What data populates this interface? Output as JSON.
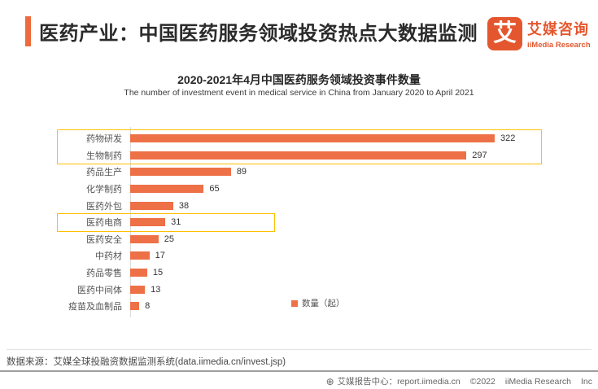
{
  "header": {
    "title": "医药产业：中国医药服务领域投资热点大数据监测",
    "logo": {
      "glyph": "艾",
      "name_cn": "艾媒咨询",
      "name_en": "iiMedia Research"
    }
  },
  "chart_data": {
    "type": "bar",
    "orientation": "horizontal",
    "title": "2020-2021年4月中国医药服务领域投资事件数量",
    "subtitle": "The number of investment event in medical service in China from January 2020 to April 2021",
    "categories": [
      "药物研发",
      "生物制药",
      "药品生产",
      "化学制药",
      "医药外包",
      "医药电商",
      "医药安全",
      "中药材",
      "药品零售",
      "医药中间体",
      "疫苗及血制品"
    ],
    "values": [
      322,
      297,
      89,
      65,
      38,
      31,
      25,
      17,
      15,
      13,
      8
    ],
    "legend": "数量（起）",
    "legend_position": "bottom-center",
    "grid": false,
    "bar_color": "#ED7047",
    "highlight_color": "#FFC000",
    "highlights": [
      {
        "categories": [
          "药物研发",
          "生物制药"
        ]
      },
      {
        "categories": [
          "医药电商"
        ]
      }
    ]
  },
  "footer": {
    "source": "数据来源：艾媒全球投融资数据监测系统(data.iimedia.cn/invest.jsp)",
    "credit": {
      "icon": "globe-icon",
      "center_label": "艾媒报告中心：report.iimedia.cn",
      "copyright": "©2022",
      "company": "iiMedia Research",
      "suffix": "Inc"
    }
  },
  "colors": {
    "bar": "#ED7047",
    "highlight": "#FFC000",
    "logo": "#E4572E",
    "accent": "#ED6A3C"
  }
}
